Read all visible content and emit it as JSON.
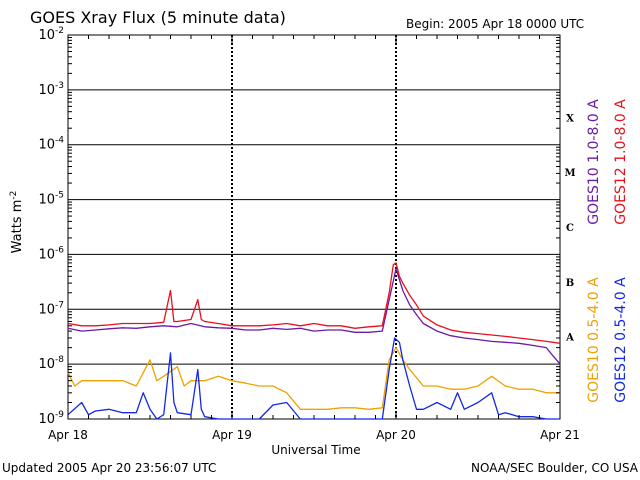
{
  "title": "GOES Xray Flux (5 minute data)",
  "begin": "Begin:  2005 Apr 18 0000 UTC",
  "updated": "Updated 2005 Apr 20 23:56:07 UTC",
  "source": "NOAA/SEC Boulder, CO USA",
  "colors": {
    "purple": "#6a1aa8",
    "red": "#e8101c",
    "orange": "#f0a000",
    "blue": "#1428e6",
    "grid": "#000000"
  },
  "chart_data": {
    "type": "line",
    "title": "GOES Xray Flux (5 minute data)",
    "xlabel": "Universal Time",
    "ylabel": "Watts m⁻²",
    "yscale": "log",
    "ylim": [
      1e-09,
      0.01
    ],
    "xlim": [
      0,
      72
    ],
    "x_unit": "hours since 2005 Apr 18 0000 UTC",
    "x_ticks": [
      {
        "x": 0,
        "label": "Apr 18"
      },
      {
        "x": 24,
        "label": "Apr 19"
      },
      {
        "x": 48,
        "label": "Apr 20"
      },
      {
        "x": 72,
        "label": "Apr 21"
      }
    ],
    "y_ticks": [
      {
        "exp": -9,
        "label": "10",
        "sup": "-9"
      },
      {
        "exp": -8,
        "label": "10",
        "sup": "-8"
      },
      {
        "exp": -7,
        "label": "10",
        "sup": "-7"
      },
      {
        "exp": -6,
        "label": "10",
        "sup": "-6"
      },
      {
        "exp": -5,
        "label": "10",
        "sup": "-5"
      },
      {
        "exp": -4,
        "label": "10",
        "sup": "-4"
      },
      {
        "exp": -3,
        "label": "10",
        "sup": "-3"
      },
      {
        "exp": -2,
        "label": "10",
        "sup": "-2"
      }
    ],
    "flare_classes": [
      {
        "label": "A",
        "exp": -7.5
      },
      {
        "label": "B",
        "exp": -6.5
      },
      {
        "label": "C",
        "exp": -5.5
      },
      {
        "label": "M",
        "exp": -4.5
      },
      {
        "label": "X",
        "exp": -3.5
      }
    ],
    "grid": true,
    "legend_position": "right",
    "series": [
      {
        "name": "GOES10 1.0-8.0 A",
        "color": "#6a1aa8",
        "points": [
          [
            0,
            4.5e-08
          ],
          [
            2,
            4e-08
          ],
          [
            4,
            4.2e-08
          ],
          [
            6,
            4.4e-08
          ],
          [
            8,
            4.6e-08
          ],
          [
            10,
            4.5e-08
          ],
          [
            12,
            4.8e-08
          ],
          [
            14,
            5e-08
          ],
          [
            16,
            4.8e-08
          ],
          [
            18,
            5.5e-08
          ],
          [
            20,
            4.8e-08
          ],
          [
            22,
            4.6e-08
          ],
          [
            24,
            4.5e-08
          ],
          [
            26,
            4.2e-08
          ],
          [
            28,
            4.2e-08
          ],
          [
            30,
            4.5e-08
          ],
          [
            32,
            4.3e-08
          ],
          [
            34,
            4.5e-08
          ],
          [
            36,
            4e-08
          ],
          [
            38,
            4.2e-08
          ],
          [
            40,
            4.2e-08
          ],
          [
            42,
            3.8e-08
          ],
          [
            44,
            3.8e-08
          ],
          [
            46,
            4e-08
          ],
          [
            48,
            5.5e-07
          ],
          [
            49,
            2.2e-07
          ],
          [
            50,
            1.2e-07
          ],
          [
            51,
            8e-08
          ],
          [
            52,
            5.5e-08
          ],
          [
            54,
            4e-08
          ],
          [
            56,
            3.3e-08
          ],
          [
            58,
            3e-08
          ],
          [
            60,
            2.8e-08
          ],
          [
            62,
            2.6e-08
          ],
          [
            64,
            2.5e-08
          ],
          [
            66,
            2.4e-08
          ],
          [
            68,
            2.2e-08
          ],
          [
            70,
            2e-08
          ],
          [
            71,
            1.4e-08
          ],
          [
            72,
            1e-08
          ]
        ]
      },
      {
        "name": "GOES12 1.0-8.0 A",
        "color": "#e8101c",
        "points": [
          [
            0,
            5.5e-08
          ],
          [
            2,
            5e-08
          ],
          [
            4,
            5e-08
          ],
          [
            6,
            5.2e-08
          ],
          [
            8,
            5.5e-08
          ],
          [
            10,
            5.5e-08
          ],
          [
            12,
            5.5e-08
          ],
          [
            14,
            5.8e-08
          ],
          [
            15,
            2.2e-07
          ],
          [
            15.5,
            6e-08
          ],
          [
            16,
            6e-08
          ],
          [
            18,
            6.5e-08
          ],
          [
            19,
            1.5e-07
          ],
          [
            19.5,
            6.5e-08
          ],
          [
            20,
            6e-08
          ],
          [
            22,
            5.5e-08
          ],
          [
            24,
            5e-08
          ],
          [
            26,
            5e-08
          ],
          [
            28,
            5e-08
          ],
          [
            30,
            5.2e-08
          ],
          [
            32,
            5.5e-08
          ],
          [
            34,
            5e-08
          ],
          [
            36,
            5.5e-08
          ],
          [
            38,
            5e-08
          ],
          [
            40,
            5e-08
          ],
          [
            42,
            4.5e-08
          ],
          [
            44,
            4.8e-08
          ],
          [
            46,
            5e-08
          ],
          [
            47,
            2e-07
          ],
          [
            47.6,
            6.5e-07
          ],
          [
            48,
            7e-07
          ],
          [
            48.5,
            4e-07
          ],
          [
            49,
            3e-07
          ],
          [
            50,
            1.8e-07
          ],
          [
            51,
            1.2e-07
          ],
          [
            52,
            7.5e-08
          ],
          [
            54,
            5.2e-08
          ],
          [
            56,
            4.2e-08
          ],
          [
            58,
            3.8e-08
          ],
          [
            60,
            3.6e-08
          ],
          [
            62,
            3.4e-08
          ],
          [
            64,
            3.2e-08
          ],
          [
            66,
            3e-08
          ],
          [
            68,
            2.8e-08
          ],
          [
            70,
            2.6e-08
          ],
          [
            72,
            2.4e-08
          ]
        ]
      },
      {
        "name": "GOES10 0.5-4.0 A",
        "color": "#f0a000",
        "points": [
          [
            0,
            7e-09
          ],
          [
            1,
            4e-09
          ],
          [
            2,
            5e-09
          ],
          [
            4,
            5e-09
          ],
          [
            6,
            5e-09
          ],
          [
            8,
            5e-09
          ],
          [
            10,
            4e-09
          ],
          [
            12,
            1.2e-08
          ],
          [
            13,
            5e-09
          ],
          [
            14,
            6e-09
          ],
          [
            16,
            9e-09
          ],
          [
            17,
            4e-09
          ],
          [
            18,
            5e-09
          ],
          [
            20,
            5e-09
          ],
          [
            22,
            6e-09
          ],
          [
            24,
            5e-09
          ],
          [
            26,
            4.5e-09
          ],
          [
            28,
            4e-09
          ],
          [
            30,
            4e-09
          ],
          [
            32,
            3e-09
          ],
          [
            34,
            1.5e-09
          ],
          [
            36,
            1.5e-09
          ],
          [
            38,
            1.5e-09
          ],
          [
            40,
            1.6e-09
          ],
          [
            42,
            1.6e-09
          ],
          [
            44,
            1.5e-09
          ],
          [
            46,
            1.6e-09
          ],
          [
            47,
            1.2e-08
          ],
          [
            48,
            2e-08
          ],
          [
            49,
            1.2e-08
          ],
          [
            50,
            8e-09
          ],
          [
            52,
            4e-09
          ],
          [
            54,
            4e-09
          ],
          [
            56,
            3.5e-09
          ],
          [
            58,
            3.5e-09
          ],
          [
            60,
            4e-09
          ],
          [
            62,
            6e-09
          ],
          [
            64,
            4e-09
          ],
          [
            66,
            3.5e-09
          ],
          [
            68,
            3.5e-09
          ],
          [
            70,
            3e-09
          ],
          [
            72,
            3e-09
          ]
        ]
      },
      {
        "name": "GOES12 0.5-4.0 A",
        "color": "#1428e6",
        "points": [
          [
            0,
            1.2e-09
          ],
          [
            2,
            2e-09
          ],
          [
            3,
            1.2e-09
          ],
          [
            4,
            1.4e-09
          ],
          [
            6,
            1.5e-09
          ],
          [
            8,
            1.3e-09
          ],
          [
            10,
            1.3e-09
          ],
          [
            11,
            3e-09
          ],
          [
            12,
            1.5e-09
          ],
          [
            13,
            1e-09
          ],
          [
            14,
            1.2e-09
          ],
          [
            15,
            1.6e-08
          ],
          [
            15.5,
            2e-09
          ],
          [
            16,
            1.3e-09
          ],
          [
            18,
            1.2e-09
          ],
          [
            19,
            8e-09
          ],
          [
            19.5,
            1.5e-09
          ],
          [
            20,
            1.1e-09
          ],
          [
            22,
            1e-09
          ],
          [
            24,
            1e-09
          ],
          [
            26,
            1e-09
          ],
          [
            28,
            1e-09
          ],
          [
            30,
            1.8e-09
          ],
          [
            32,
            2e-09
          ],
          [
            34,
            1e-09
          ],
          [
            36,
            1e-09
          ],
          [
            38,
            1e-09
          ],
          [
            40,
            1e-09
          ],
          [
            42,
            1e-09
          ],
          [
            44,
            1e-09
          ],
          [
            46,
            1e-09
          ],
          [
            47,
            8e-09
          ],
          [
            47.8,
            3e-08
          ],
          [
            48.5,
            2.5e-08
          ],
          [
            49,
            1.2e-08
          ],
          [
            50,
            4e-09
          ],
          [
            51,
            1.5e-09
          ],
          [
            52,
            1.5e-09
          ],
          [
            54,
            2e-09
          ],
          [
            56,
            1.5e-09
          ],
          [
            57,
            3e-09
          ],
          [
            58,
            1.5e-09
          ],
          [
            60,
            2e-09
          ],
          [
            62,
            3e-09
          ],
          [
            63,
            1.2e-09
          ],
          [
            64,
            1.3e-09
          ],
          [
            66,
            1.1e-09
          ],
          [
            68,
            1.1e-09
          ],
          [
            70,
            1e-09
          ],
          [
            72,
            1e-09
          ]
        ]
      }
    ]
  }
}
